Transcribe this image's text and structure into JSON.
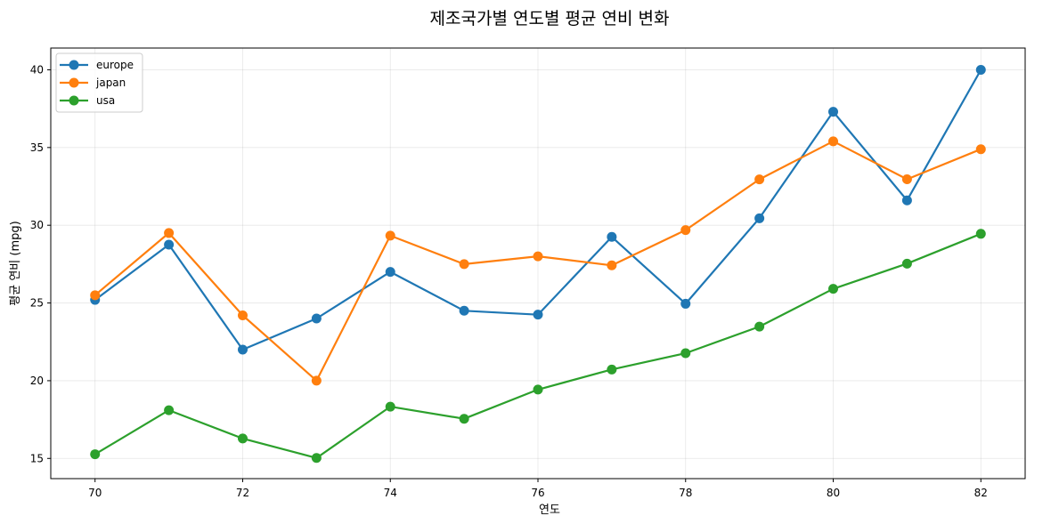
{
  "chart_data": {
    "type": "line",
    "title": "제조국가별 연도별 평균 연비 변화",
    "xlabel": "연도",
    "ylabel": "평균 연비 (mpg)",
    "x": [
      70,
      71,
      72,
      73,
      74,
      75,
      76,
      77,
      78,
      79,
      80,
      81,
      82
    ],
    "xlim": [
      69.4,
      82.6
    ],
    "ylim": [
      13.7,
      41.4
    ],
    "xticks": [
      70,
      72,
      74,
      76,
      78,
      80,
      82
    ],
    "yticks": [
      15,
      20,
      25,
      30,
      35,
      40
    ],
    "grid": true,
    "legend_position": "top-left",
    "series": [
      {
        "name": "europe",
        "color": "#1f77b4",
        "values": [
          25.2,
          28.75,
          22.0,
          24.0,
          27.0,
          24.5,
          24.25,
          29.25,
          24.95,
          30.45,
          37.3,
          31.6,
          40.0
        ]
      },
      {
        "name": "japan",
        "color": "#ff7f0e",
        "values": [
          25.5,
          29.5,
          24.2,
          20.0,
          29.33,
          27.5,
          28.0,
          27.42,
          29.69,
          32.95,
          35.4,
          32.96,
          34.89
        ]
      },
      {
        "name": "usa",
        "color": "#2ca02c",
        "values": [
          15.27,
          18.1,
          16.28,
          15.03,
          18.33,
          17.55,
          19.43,
          20.72,
          21.77,
          23.48,
          25.91,
          27.53,
          29.45
        ]
      }
    ]
  }
}
